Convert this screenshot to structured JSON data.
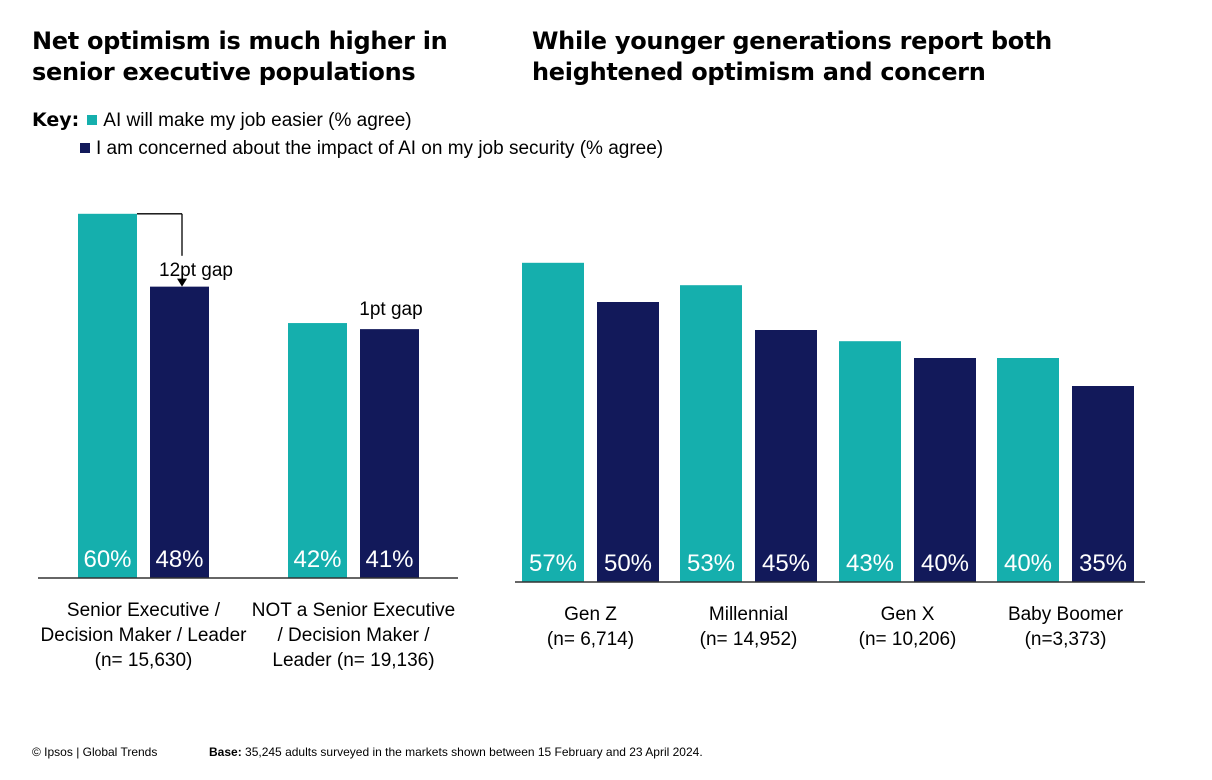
{
  "titles": {
    "left": "Net optimism is much higher in senior executive populations",
    "right": "While younger generations report both heightened optimism and concern"
  },
  "key": {
    "label": "Key:",
    "item1": "AI will make my job easier (% agree)",
    "item2": "I am concerned about the impact of AI on my job security (% agree)"
  },
  "colors": {
    "teal": "#15afad",
    "navy": "#12195a",
    "axis": "#333333",
    "label": "#ffffff"
  },
  "chart_data": [
    {
      "type": "bar",
      "categories": [
        [
          "Senior Executive /",
          "Decision Maker / Leader",
          "(n= 15,630)"
        ],
        [
          "NOT a Senior Executive",
          "/ Decision Maker /",
          "Leader (n= 19,136)"
        ]
      ],
      "series": [
        {
          "name": "AI will make my job easier (% agree)",
          "values": [
            60,
            42
          ],
          "labels": [
            "60%",
            "42%"
          ]
        },
        {
          "name": "I am concerned about the impact of AI on my job security (% agree)",
          "values": [
            48,
            41
          ],
          "labels": [
            "48%",
            "41%"
          ]
        }
      ],
      "annotations": [
        "12pt gap",
        "1pt gap"
      ],
      "ylim": [
        0,
        60
      ]
    },
    {
      "type": "bar",
      "categories": [
        [
          "Gen Z",
          "(n= 6,714)"
        ],
        [
          "Millennial",
          "(n= 14,952)"
        ],
        [
          "Gen X",
          "(n= 10,206)"
        ],
        [
          "Baby Boomer",
          "(n=3,373)"
        ]
      ],
      "series": [
        {
          "name": "AI will make my job easier (% agree)",
          "values": [
            57,
            53,
            43,
            40
          ],
          "labels": [
            "57%",
            "53%",
            "43%",
            "40%"
          ]
        },
        {
          "name": "I am concerned about the impact of AI on my job security (% agree)",
          "values": [
            50,
            45,
            40,
            35
          ],
          "labels": [
            "50%",
            "45%",
            "40%",
            "35%"
          ]
        }
      ],
      "ylim": [
        0,
        60
      ]
    }
  ],
  "footer": {
    "copyright": "© Ipsos | Global Trends",
    "base_label": "Base:",
    "base_text": "35,245 adults surveyed in the markets shown between 15 February and 23 April 2024."
  }
}
